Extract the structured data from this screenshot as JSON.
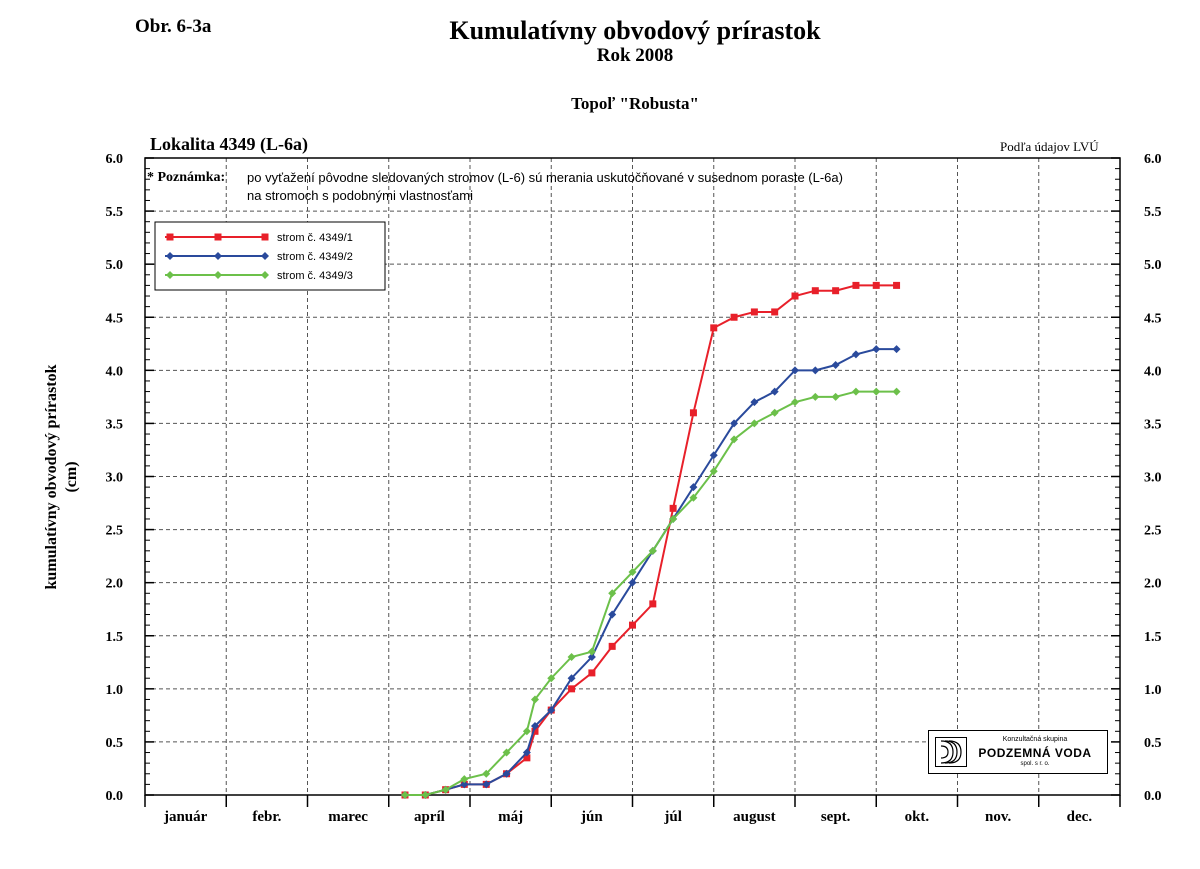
{
  "header": {
    "figure_number": "Obr. 6-3a",
    "title": "Kumulatívny obvodový prírastok",
    "subtitle": "Rok 2008",
    "species": "Topoľ \"Robusta\"",
    "locality": "Lokalita 4349 (L-6a)",
    "source": "Podľa údajov LVÚ"
  },
  "note": {
    "label": "* Poznámka:",
    "line1": "po vyťažení pôvodne sledovaných stromov (L-6) sú merania uskutočňované v susednom poraste (L-6a)",
    "line2": "na stromoch s podobnými vlastnosťami"
  },
  "logo": {
    "line1": "Konzultačná skupina",
    "line2": "PODZEMNÁ VODA",
    "line3": "spol. s r. o."
  },
  "chart_data": {
    "type": "line",
    "title": "Kumulatívny obvodový prírastok",
    "subtitle": "Rok 2008",
    "ylabel_lines": [
      "kumulatívny obvodový prírastok",
      "(cm)"
    ],
    "ylim": [
      0,
      6
    ],
    "yticks": [
      "0.0",
      "0.5",
      "1.0",
      "1.5",
      "2.0",
      "2.5",
      "3.0",
      "3.5",
      "4.0",
      "4.5",
      "5.0",
      "5.5",
      "6.0"
    ],
    "xlim": [
      0,
      12
    ],
    "months": [
      "január",
      "febr.",
      "marec",
      "apríl",
      "máj",
      "jún",
      "júl",
      "august",
      "sept.",
      "okt.",
      "nov.",
      "dec."
    ],
    "x_unit": "months since start of year",
    "grid": true,
    "legend_position": "top-left",
    "series": [
      {
        "name": "strom č. 4349/1",
        "color": "#e8202a",
        "marker": "square",
        "points": [
          [
            3.2,
            0.0
          ],
          [
            3.45,
            0.0
          ],
          [
            3.7,
            0.05
          ],
          [
            3.93,
            0.1
          ],
          [
            4.2,
            0.1
          ],
          [
            4.45,
            0.2
          ],
          [
            4.7,
            0.35
          ],
          [
            4.8,
            0.6
          ],
          [
            5.0,
            0.8
          ],
          [
            5.25,
            1.0
          ],
          [
            5.5,
            1.15
          ],
          [
            5.75,
            1.4
          ],
          [
            6.0,
            1.6
          ],
          [
            6.25,
            1.8
          ],
          [
            6.5,
            2.7
          ],
          [
            6.75,
            3.6
          ],
          [
            7.0,
            4.4
          ],
          [
            7.25,
            4.5
          ],
          [
            7.5,
            4.55
          ],
          [
            7.75,
            4.55
          ],
          [
            8.0,
            4.7
          ],
          [
            8.25,
            4.75
          ],
          [
            8.5,
            4.75
          ],
          [
            8.75,
            4.8
          ],
          [
            9.0,
            4.8
          ],
          [
            9.25,
            4.8
          ]
        ]
      },
      {
        "name": "strom č. 4349/2",
        "color": "#2a4a9c",
        "marker": "diamond",
        "points": [
          [
            3.2,
            0.0
          ],
          [
            3.45,
            0.0
          ],
          [
            3.7,
            0.05
          ],
          [
            3.93,
            0.1
          ],
          [
            4.2,
            0.1
          ],
          [
            4.45,
            0.2
          ],
          [
            4.7,
            0.4
          ],
          [
            4.8,
            0.65
          ],
          [
            5.0,
            0.8
          ],
          [
            5.25,
            1.1
          ],
          [
            5.5,
            1.3
          ],
          [
            5.75,
            1.7
          ],
          [
            6.0,
            2.0
          ],
          [
            6.25,
            2.3
          ],
          [
            6.5,
            2.6
          ],
          [
            6.75,
            2.9
          ],
          [
            7.0,
            3.2
          ],
          [
            7.25,
            3.5
          ],
          [
            7.5,
            3.7
          ],
          [
            7.75,
            3.8
          ],
          [
            8.0,
            4.0
          ],
          [
            8.25,
            4.0
          ],
          [
            8.5,
            4.05
          ],
          [
            8.75,
            4.15
          ],
          [
            9.0,
            4.2
          ],
          [
            9.25,
            4.2
          ]
        ]
      },
      {
        "name": "strom č. 4349/3",
        "color": "#6cc04a",
        "marker": "diamond",
        "points": [
          [
            3.2,
            0.0
          ],
          [
            3.45,
            0.0
          ],
          [
            3.7,
            0.05
          ],
          [
            3.93,
            0.15
          ],
          [
            4.2,
            0.2
          ],
          [
            4.45,
            0.4
          ],
          [
            4.7,
            0.6
          ],
          [
            4.8,
            0.9
          ],
          [
            5.0,
            1.1
          ],
          [
            5.25,
            1.3
          ],
          [
            5.5,
            1.35
          ],
          [
            5.75,
            1.9
          ],
          [
            6.0,
            2.1
          ],
          [
            6.25,
            2.3
          ],
          [
            6.5,
            2.6
          ],
          [
            6.75,
            2.8
          ],
          [
            7.0,
            3.05
          ],
          [
            7.25,
            3.35
          ],
          [
            7.5,
            3.5
          ],
          [
            7.75,
            3.6
          ],
          [
            8.0,
            3.7
          ],
          [
            8.25,
            3.75
          ],
          [
            8.5,
            3.75
          ],
          [
            8.75,
            3.8
          ],
          [
            9.0,
            3.8
          ],
          [
            9.25,
            3.8
          ]
        ]
      }
    ]
  }
}
